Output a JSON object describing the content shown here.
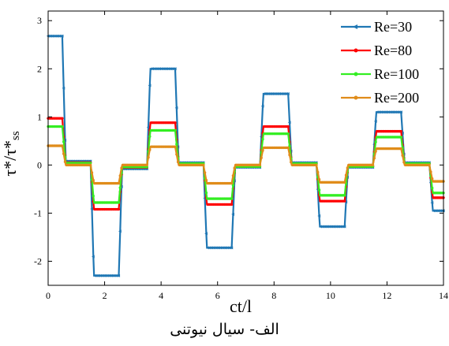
{
  "caption": "الف- سیال نیوتنی",
  "chart_data": {
    "type": "line",
    "xlabel": "ct/l",
    "ylabel_main": "τ*/τ*",
    "ylabel_sub": "ss",
    "xlim": [
      0,
      14
    ],
    "ylim": [
      -2.5,
      3.2
    ],
    "xticks": [
      0,
      2,
      4,
      6,
      8,
      10,
      12,
      14
    ],
    "yticks": [
      -2,
      -1,
      0,
      1,
      2,
      3
    ],
    "legend_position": "top-right",
    "grid": false,
    "series": [
      {
        "name": "Re=30",
        "color": "#1f77b4",
        "marker": "triangle",
        "levels": [
          2.68,
          0.08,
          -2.3,
          -0.08,
          2.0,
          0.05,
          -1.72,
          -0.05,
          1.48,
          0.05,
          -1.28,
          -0.05,
          1.1,
          0.05,
          -0.95
        ]
      },
      {
        "name": "Re=80",
        "color": "#ff0000",
        "marker": "circle",
        "levels": [
          0.97,
          0.05,
          -0.92,
          -0.05,
          0.88,
          0.03,
          -0.82,
          -0.03,
          0.8,
          0.03,
          -0.75,
          -0.03,
          0.7,
          0.03,
          -0.68
        ]
      },
      {
        "name": "Re=100",
        "color": "#33ee22",
        "marker": "circle",
        "levels": [
          0.8,
          0.04,
          -0.78,
          -0.04,
          0.72,
          0.03,
          -0.7,
          -0.03,
          0.65,
          0.03,
          -0.63,
          -0.03,
          0.58,
          0.03,
          -0.58
        ]
      },
      {
        "name": "Re=200",
        "color": "#e08c1a",
        "marker": "circle",
        "levels": [
          0.4,
          0.0,
          -0.38,
          0.0,
          0.38,
          0.0,
          -0.38,
          0.0,
          0.36,
          0.0,
          -0.36,
          0.0,
          0.34,
          0.0,
          -0.34
        ]
      }
    ]
  }
}
